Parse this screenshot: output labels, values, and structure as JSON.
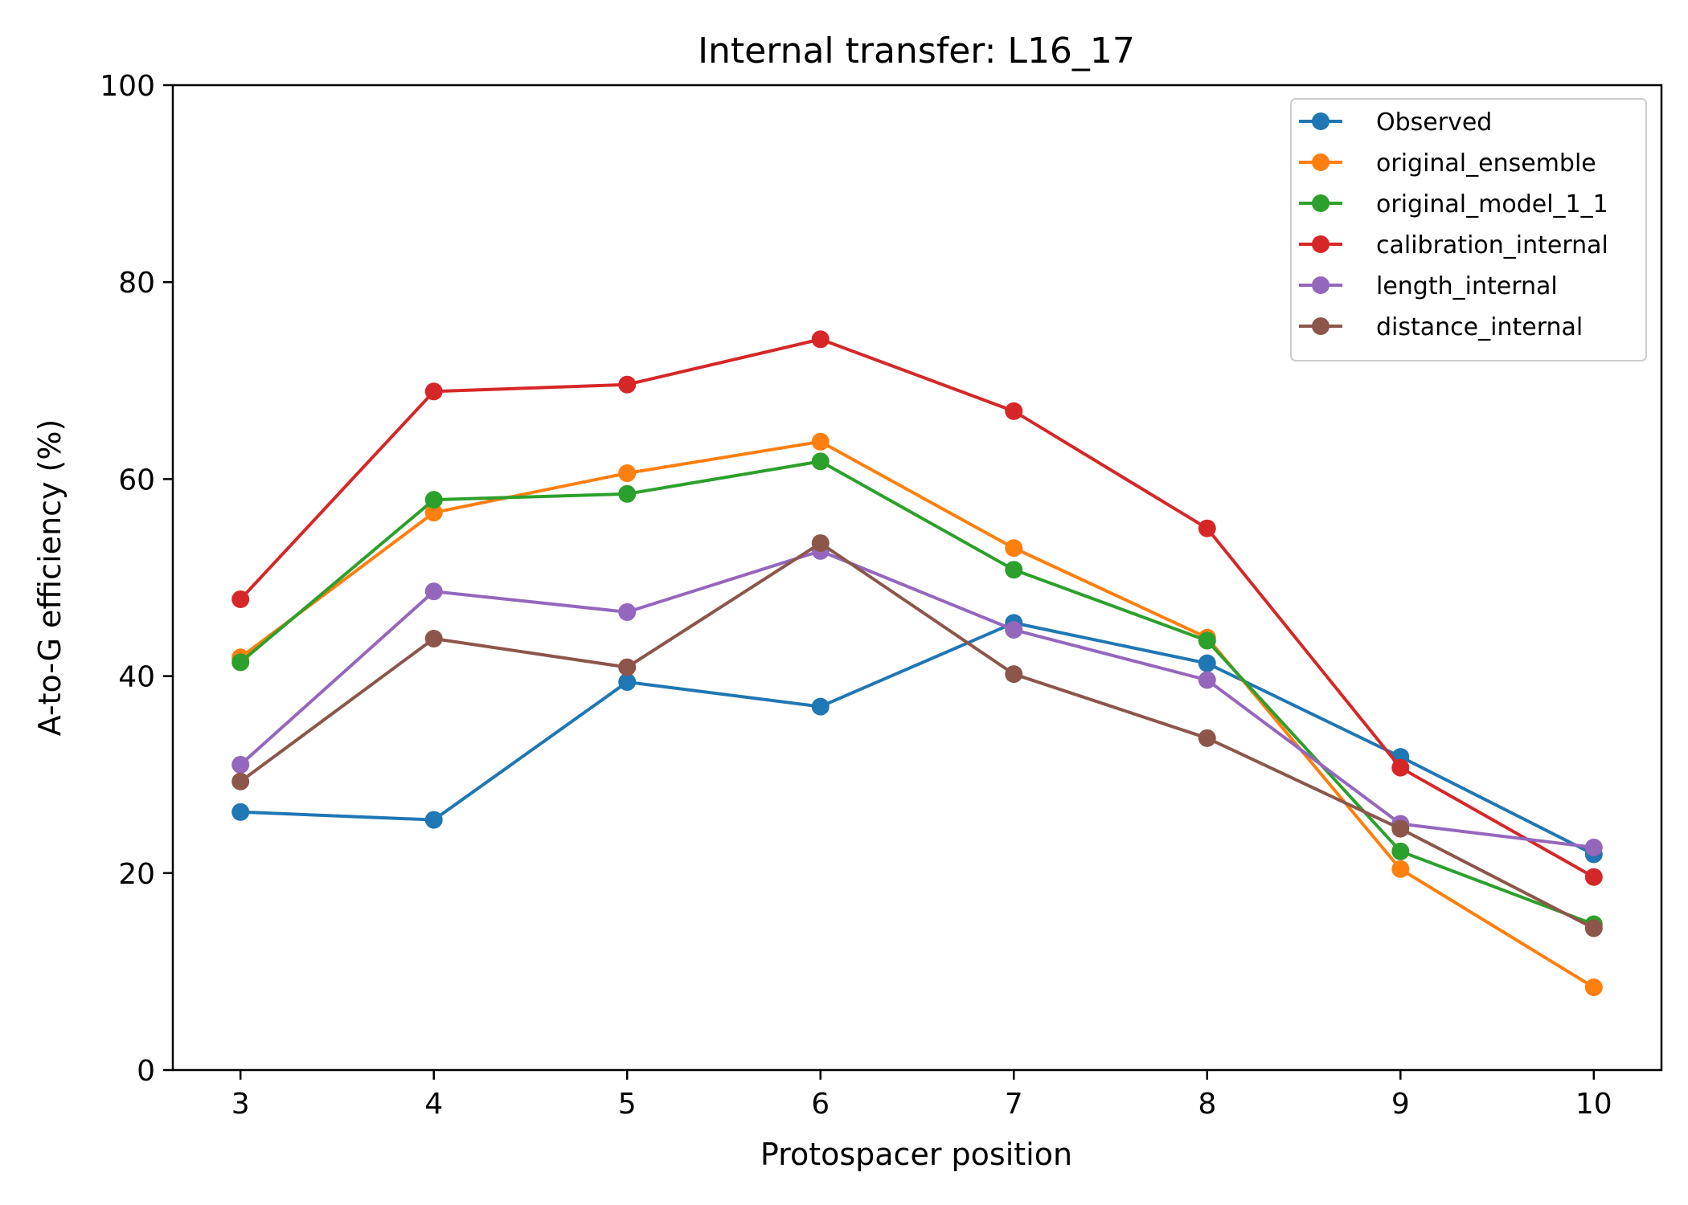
{
  "chart_data": {
    "type": "line",
    "title": "Internal transfer: L16_17",
    "xlabel": "Protospacer position",
    "ylabel": "A-to-G efficiency (%)",
    "x": [
      3,
      4,
      5,
      6,
      7,
      8,
      9,
      10
    ],
    "xlim": [
      2.65,
      10.35
    ],
    "ylim": [
      0,
      100
    ],
    "xticks": [
      "3",
      "4",
      "5",
      "6",
      "7",
      "8",
      "9",
      "10"
    ],
    "yticks": [
      "0",
      "20",
      "40",
      "60",
      "80",
      "100"
    ],
    "grid": false,
    "legend_position": "top-right",
    "series": [
      {
        "name": "Observed",
        "color": "#1f77b4",
        "values": [
          26.2,
          25.4,
          39.4,
          36.9,
          45.4,
          41.3,
          31.8,
          21.9
        ]
      },
      {
        "name": "original_ensemble",
        "color": "#ff7f0e",
        "values": [
          41.9,
          56.6,
          60.6,
          63.8,
          53.0,
          43.9,
          20.4,
          8.4
        ]
      },
      {
        "name": "original_model_1_1",
        "color": "#2ca02c",
        "values": [
          41.4,
          57.9,
          58.5,
          61.8,
          50.8,
          43.6,
          22.2,
          14.8
        ]
      },
      {
        "name": "calibration_internal",
        "color": "#d62728",
        "values": [
          47.8,
          68.9,
          69.6,
          74.2,
          66.9,
          55.0,
          30.7,
          19.6
        ]
      },
      {
        "name": "length_internal",
        "color": "#9467bd",
        "values": [
          31.0,
          48.6,
          46.5,
          52.7,
          44.7,
          39.6,
          25.0,
          22.6
        ]
      },
      {
        "name": "distance_internal",
        "color": "#8c564b",
        "values": [
          29.3,
          43.8,
          40.9,
          53.5,
          40.2,
          33.7,
          24.5,
          14.4
        ]
      }
    ]
  }
}
